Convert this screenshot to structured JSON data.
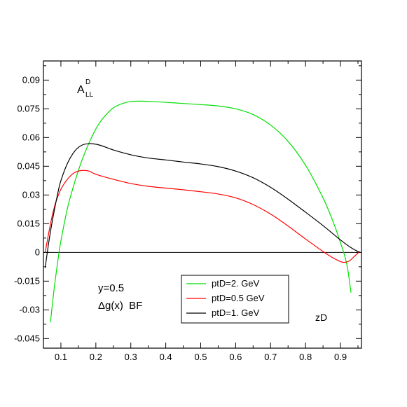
{
  "chart_data": {
    "type": "line",
    "title": "",
    "xlabel": "zD",
    "ylabel": "",
    "xlim": [
      0.05,
      0.96
    ],
    "ylim": [
      -0.05,
      0.1
    ],
    "grid": false,
    "xticks": [
      0.1,
      0.2,
      0.3,
      0.4,
      0.5,
      0.6,
      0.7,
      0.8,
      0.9
    ],
    "xtick_labels": [
      "0.1",
      "0.2",
      "0.3",
      "0.4",
      "0.5",
      "0.6",
      "0.7",
      "0.8",
      "0.9"
    ],
    "yticks": [
      -0.045,
      -0.03,
      -0.015,
      0,
      0.015,
      0.03,
      0.045,
      0.06,
      0.075,
      0.09
    ],
    "ytick_labels": [
      "-0.045",
      "-0.03",
      "-0.015",
      "0",
      "0.015",
      "0.03",
      "0.045",
      "0.06",
      "0.075",
      "0.09"
    ],
    "zero_line": true,
    "observable": {
      "base": "A",
      "superscript": "D",
      "subscript": "LL"
    },
    "annotations": [
      "y=0.5",
      "Δg(x)  BF"
    ],
    "legend_position": "bottom-center",
    "series": [
      {
        "name": "ptD=2. GeV",
        "color": "#00e000",
        "x": [
          0.07,
          0.08,
          0.09,
          0.1,
          0.12,
          0.14,
          0.16,
          0.18,
          0.2,
          0.22,
          0.25,
          0.28,
          0.3,
          0.33,
          0.36,
          0.4,
          0.45,
          0.5,
          0.55,
          0.6,
          0.65,
          0.7,
          0.75,
          0.8,
          0.85,
          0.88,
          0.9,
          0.91,
          0.92,
          0.93
        ],
        "y": [
          -0.0365,
          -0.02,
          -0.006,
          0.006,
          0.024,
          0.037,
          0.048,
          0.057,
          0.0645,
          0.07,
          0.0755,
          0.078,
          0.0788,
          0.079,
          0.0788,
          0.0784,
          0.0778,
          0.0772,
          0.0765,
          0.075,
          0.072,
          0.0665,
          0.058,
          0.0455,
          0.0285,
          0.0155,
          0.005,
          -0.0005,
          -0.008,
          -0.021
        ]
      },
      {
        "name": "ptD=0.5 GeV",
        "color": "#ff0000",
        "x": [
          0.055,
          0.065,
          0.075,
          0.085,
          0.1,
          0.12,
          0.14,
          0.16,
          0.18,
          0.2,
          0.25,
          0.3,
          0.35,
          0.4,
          0.45,
          0.5,
          0.55,
          0.6,
          0.65,
          0.7,
          0.75,
          0.8,
          0.85,
          0.88,
          0.9,
          0.91,
          0.925,
          0.94,
          0.955
        ],
        "y": [
          0.0,
          0.01,
          0.019,
          0.026,
          0.033,
          0.0385,
          0.0418,
          0.0428,
          0.0425,
          0.0408,
          0.0382,
          0.036,
          0.0345,
          0.0336,
          0.0327,
          0.0317,
          0.0305,
          0.0285,
          0.025,
          0.02,
          0.0138,
          0.007,
          0.0005,
          -0.003,
          -0.0048,
          -0.0052,
          -0.0045,
          -0.002,
          0.0005
        ]
      },
      {
        "name": "ptD=1. GeV",
        "color": "#000000",
        "x": [
          0.055,
          0.065,
          0.075,
          0.09,
          0.1,
          0.12,
          0.14,
          0.16,
          0.18,
          0.2,
          0.22,
          0.25,
          0.3,
          0.35,
          0.4,
          0.45,
          0.5,
          0.55,
          0.6,
          0.65,
          0.7,
          0.75,
          0.8,
          0.85,
          0.9,
          0.93,
          0.955
        ],
        "y": [
          -0.008,
          0.005,
          0.016,
          0.03,
          0.0375,
          0.047,
          0.053,
          0.056,
          0.0568,
          0.0565,
          0.0555,
          0.0535,
          0.051,
          0.0493,
          0.0483,
          0.0472,
          0.0462,
          0.0448,
          0.0425,
          0.039,
          0.034,
          0.0278,
          0.021,
          0.014,
          0.0065,
          0.0025,
          0.0
        ]
      }
    ]
  }
}
